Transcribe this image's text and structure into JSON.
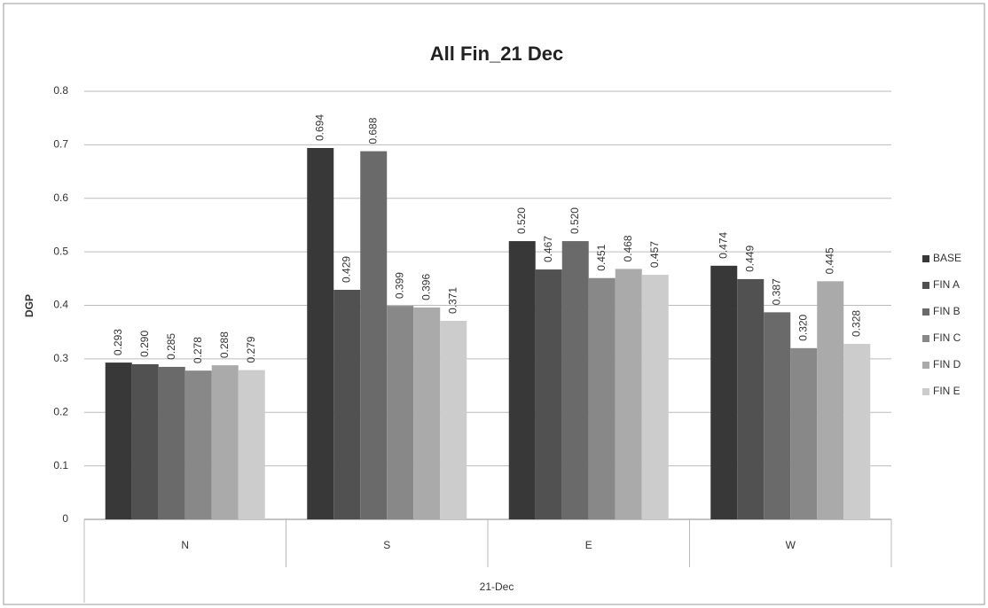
{
  "chart_data": {
    "type": "bar",
    "title": "All Fin_21 Dec",
    "x_label": "21-Dec",
    "y_label": "DGP",
    "categories": [
      "N",
      "S",
      "E",
      "W"
    ],
    "series": [
      {
        "name": "BASE",
        "color": "#383838",
        "values": [
          0.293,
          0.694,
          0.52,
          0.474
        ],
        "value_labels": [
          "0.293",
          "0.694",
          "0.520",
          "0.474"
        ]
      },
      {
        "name": "FIN A",
        "color": "#515151",
        "values": [
          0.29,
          0.429,
          0.467,
          0.449
        ],
        "value_labels": [
          "0.290",
          "0.429",
          "0.467",
          "0.449"
        ]
      },
      {
        "name": "FIN B",
        "color": "#6a6a6a",
        "values": [
          0.285,
          0.688,
          0.52,
          0.387
        ],
        "value_labels": [
          "0.285",
          "0.688",
          "0.520",
          "0.387"
        ]
      },
      {
        "name": "FIN C",
        "color": "#888888",
        "values": [
          0.278,
          0.399,
          0.451,
          0.32
        ],
        "value_labels": [
          "0.278",
          "0.399",
          "0.451",
          "0.320"
        ]
      },
      {
        "name": "FIN D",
        "color": "#aaaaaa",
        "values": [
          0.288,
          0.396,
          0.468,
          0.445
        ],
        "value_labels": [
          "0.288",
          "0.396",
          "0.468",
          "0.445"
        ]
      },
      {
        "name": "FIN E",
        "color": "#cccccc",
        "values": [
          0.279,
          0.371,
          0.457,
          0.328
        ],
        "value_labels": [
          "0.279",
          "0.371",
          "0.457",
          "0.328"
        ]
      }
    ],
    "ylim": [
      0,
      0.8
    ],
    "yticks": [
      0,
      0.1,
      0.2,
      0.3,
      0.4,
      0.5,
      0.6,
      0.7,
      0.8
    ],
    "grid": true,
    "legend": "right"
  }
}
